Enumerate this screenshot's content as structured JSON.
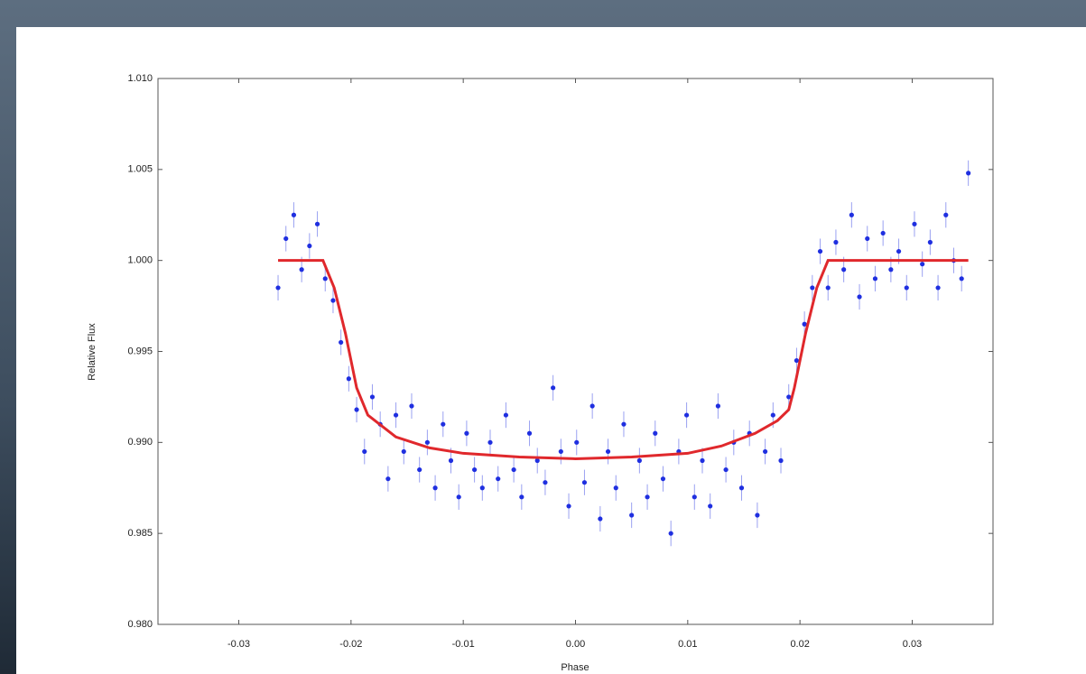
{
  "chart_data": {
    "type": "scatter",
    "x_label": "Phase",
    "y_label": "Relative Flux",
    "xlim": [
      -0.0372,
      0.0372
    ],
    "ylim": [
      0.98,
      1.01
    ],
    "xticks": [
      {
        "value": -0.03,
        "label": "-0.03"
      },
      {
        "value": -0.02,
        "label": "-0.02"
      },
      {
        "value": -0.01,
        "label": "-0.01"
      },
      {
        "value": 0,
        "label": "0.00"
      },
      {
        "value": 0.01,
        "label": "0.01"
      },
      {
        "value": 0.02,
        "label": "0.02"
      },
      {
        "value": 0.03,
        "label": "0.03"
      }
    ],
    "yticks": [
      {
        "value": 0.98,
        "label": "0.980"
      },
      {
        "value": 0.985,
        "label": "0.985"
      },
      {
        "value": 0.99,
        "label": "0.990"
      },
      {
        "value": 0.995,
        "label": "0.995"
      },
      {
        "value": 1,
        "label": "1.000"
      },
      {
        "value": 1.005,
        "label": "1.005"
      },
      {
        "value": 1.01,
        "label": "1.010"
      }
    ],
    "series": [
      {
        "type": "scatter",
        "color": "#1f2fe0",
        "yerr": 0.0007,
        "x": [
          -0.0265,
          -0.0258,
          -0.0251,
          -0.0244,
          -0.0237,
          -0.023,
          -0.0223,
          -0.0216,
          -0.0209,
          -0.0202,
          -0.0195,
          -0.0188,
          -0.0181,
          -0.0174,
          -0.0167,
          -0.016,
          -0.0153,
          -0.0146,
          -0.0139,
          -0.0132,
          -0.0125,
          -0.0118,
          -0.0111,
          -0.0104,
          -0.0097,
          -0.009,
          -0.0083,
          -0.0076,
          -0.0069,
          -0.0062,
          -0.0055,
          -0.0048,
          -0.0041,
          -0.0034,
          -0.0027,
          -0.002,
          -0.0013,
          -0.0006,
          0.0001,
          0.0008,
          0.0015,
          0.0022,
          0.0029,
          0.0036,
          0.0043,
          0.005,
          0.0057,
          0.0064,
          0.0071,
          0.0078,
          0.0085,
          0.0092,
          0.0099,
          0.0106,
          0.0113,
          0.012,
          0.0127,
          0.0134,
          0.0141,
          0.0148,
          0.0155,
          0.0162,
          0.0169,
          0.0176,
          0.0183,
          0.019,
          0.0197,
          0.0204,
          0.0211,
          0.0218,
          0.0225,
          0.0232,
          0.0239,
          0.0246,
          0.0253,
          0.026,
          0.0267,
          0.0274,
          0.0281,
          0.0288,
          0.0295,
          0.0302,
          0.0309,
          0.0316,
          0.0323,
          0.033,
          0.0337,
          0.0344,
          0.035
        ],
        "values": [
          0.9985,
          1.0012,
          1.0025,
          0.9995,
          1.0008,
          1.002,
          0.999,
          0.9978,
          0.9955,
          0.9935,
          0.9918,
          0.9895,
          0.9925,
          0.991,
          0.988,
          0.9915,
          0.9895,
          0.992,
          0.9885,
          0.99,
          0.9875,
          0.991,
          0.989,
          0.987,
          0.9905,
          0.9885,
          0.9875,
          0.99,
          0.988,
          0.9915,
          0.9885,
          0.987,
          0.9905,
          0.989,
          0.9878,
          0.993,
          0.9895,
          0.9865,
          0.99,
          0.9878,
          0.992,
          0.9858,
          0.9895,
          0.9875,
          0.991,
          0.986,
          0.989,
          0.987,
          0.9905,
          0.988,
          0.985,
          0.9895,
          0.9915,
          0.987,
          0.989,
          0.9865,
          0.992,
          0.9885,
          0.99,
          0.9875,
          0.9905,
          0.986,
          0.9895,
          0.9915,
          0.989,
          0.9925,
          0.9945,
          0.9965,
          0.9985,
          1.0005,
          0.9985,
          1.001,
          0.9995,
          1.0025,
          0.998,
          1.0012,
          0.999,
          1.0015,
          0.9995,
          1.0005,
          0.9985,
          1.002,
          0.9998,
          1.001,
          0.9985,
          1.0025,
          1,
          0.999,
          1.0048
        ]
      },
      {
        "type": "line",
        "color": "#e0282c",
        "x": [
          -0.0265,
          -0.0225,
          -0.0215,
          -0.0205,
          -0.0195,
          -0.0185,
          -0.016,
          -0.013,
          -0.01,
          -0.005,
          0,
          0.005,
          0.01,
          0.013,
          0.016,
          0.018,
          0.019,
          0.0195,
          0.0205,
          0.0215,
          0.0225,
          0.035
        ],
        "values": [
          1,
          1,
          0.9985,
          0.996,
          0.993,
          0.9915,
          0.9903,
          0.9897,
          0.9894,
          0.9892,
          0.9891,
          0.9892,
          0.9894,
          0.9898,
          0.9905,
          0.9912,
          0.9918,
          0.993,
          0.996,
          0.9985,
          1,
          1
        ]
      }
    ]
  }
}
